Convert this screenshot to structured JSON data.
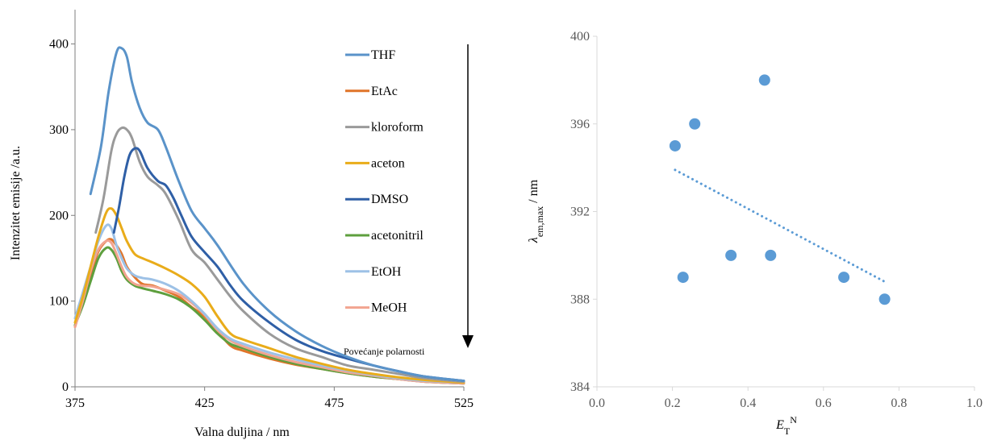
{
  "chart_data": [
    {
      "type": "line",
      "xlabel": "Valna duljina / nm",
      "ylabel": "Intenzitet emisije  /a.u.",
      "xlim": [
        375,
        525
      ],
      "ylim": [
        0,
        440
      ],
      "xticks": [
        "375",
        "425",
        "475",
        "525"
      ],
      "yticks": [
        "0",
        "100",
        "200",
        "300",
        "400"
      ],
      "legend_position": "right-inside",
      "annotation": "Povećanje polarnosti",
      "series": [
        {
          "name": "THF",
          "color": "#5a93c9",
          "x": [
            381,
            385,
            388,
            391,
            393,
            395,
            397,
            400,
            403,
            407,
            410,
            415,
            420,
            425,
            430,
            440,
            450,
            460,
            470,
            480,
            490,
            500,
            510,
            525
          ],
          "y": [
            225,
            280,
            345,
            390,
            395,
            385,
            355,
            325,
            308,
            300,
            280,
            240,
            205,
            185,
            165,
            120,
            88,
            65,
            48,
            35,
            25,
            18,
            12,
            7
          ]
        },
        {
          "name": "EtAc",
          "color": "#e07429",
          "x": [
            375,
            378,
            381,
            384,
            387,
            389,
            391,
            393,
            395,
            398,
            401,
            405,
            410,
            415,
            420,
            425,
            430,
            435,
            440,
            450,
            460,
            470,
            480,
            490,
            500,
            510,
            525
          ],
          "y": [
            70,
            100,
            130,
            158,
            170,
            172,
            165,
            155,
            140,
            128,
            120,
            118,
            112,
            105,
            93,
            82,
            65,
            48,
            42,
            33,
            26,
            21,
            16,
            12,
            9,
            6,
            4
          ]
        },
        {
          "name": "kloroform",
          "color": "#9a9a9a",
          "x": [
            383,
            386,
            389,
            391,
            393,
            395,
            397,
            400,
            403,
            407,
            410,
            415,
            420,
            425,
            430,
            435,
            440,
            450,
            460,
            470,
            480,
            490,
            500,
            510,
            525
          ],
          "y": [
            180,
            220,
            275,
            295,
            302,
            300,
            290,
            262,
            245,
            235,
            225,
            195,
            160,
            145,
            125,
            105,
            88,
            62,
            45,
            35,
            25,
            20,
            15,
            10,
            6
          ]
        },
        {
          "name": "aceton",
          "color": "#e9ac1a",
          "x": [
            375,
            378,
            381,
            384,
            387,
            389,
            391,
            393,
            395,
            398,
            401,
            405,
            410,
            415,
            420,
            425,
            430,
            435,
            440,
            450,
            460,
            470,
            480,
            490,
            500,
            510,
            525
          ],
          "y": [
            75,
            105,
            140,
            175,
            203,
            208,
            200,
            185,
            170,
            155,
            150,
            145,
            138,
            130,
            120,
            105,
            82,
            62,
            55,
            45,
            35,
            27,
            20,
            15,
            11,
            8,
            5
          ]
        },
        {
          "name": "DMSO",
          "color": "#2f5fa6",
          "x": [
            390,
            392,
            394,
            396,
            398,
            400,
            403,
            407,
            410,
            413,
            416,
            420,
            425,
            430,
            435,
            440,
            450,
            460,
            470,
            480,
            490,
            500,
            510,
            525
          ],
          "y": [
            180,
            210,
            245,
            270,
            278,
            275,
            255,
            240,
            235,
            220,
            200,
            175,
            157,
            140,
            118,
            100,
            75,
            55,
            42,
            33,
            25,
            18,
            12,
            7
          ]
        },
        {
          "name": "acetonitril",
          "color": "#5e9f3e",
          "x": [
            375,
            378,
            381,
            384,
            387,
            389,
            391,
            393,
            395,
            398,
            401,
            405,
            410,
            415,
            420,
            425,
            430,
            435,
            440,
            450,
            460,
            470,
            480,
            490,
            500,
            510,
            525
          ],
          "y": [
            72,
            95,
            123,
            150,
            162,
            160,
            150,
            135,
            125,
            118,
            115,
            112,
            108,
            102,
            92,
            78,
            62,
            50,
            45,
            35,
            27,
            21,
            16,
            12,
            9,
            6,
            4
          ]
        },
        {
          "name": "EtOH",
          "color": "#9dc1e6",
          "x": [
            375,
            378,
            381,
            384,
            387,
            389,
            391,
            393,
            395,
            398,
            401,
            405,
            410,
            415,
            420,
            425,
            430,
            435,
            440,
            450,
            460,
            470,
            480,
            490,
            500,
            510,
            525
          ],
          "y": [
            80,
            110,
            140,
            170,
            188,
            185,
            165,
            150,
            138,
            130,
            127,
            125,
            120,
            112,
            100,
            85,
            68,
            56,
            50,
            40,
            32,
            25,
            19,
            14,
            10,
            7,
            5
          ]
        },
        {
          "name": "MeOH",
          "color": "#f2a490",
          "x": [
            375,
            378,
            381,
            384,
            387,
            389,
            391,
            393,
            395,
            398,
            401,
            405,
            410,
            415,
            420,
            425,
            430,
            435,
            440,
            450,
            460,
            470,
            480,
            490,
            500,
            510,
            525
          ],
          "y": [
            70,
            100,
            135,
            160,
            170,
            168,
            155,
            140,
            128,
            120,
            118,
            117,
            113,
            108,
            98,
            84,
            66,
            54,
            47,
            37,
            29,
            23,
            17,
            13,
            9,
            6,
            4
          ]
        }
      ]
    },
    {
      "type": "scatter",
      "xlabel": "E_T^N",
      "xlabel_main": "E",
      "xlabel_sub": "T",
      "xlabel_sup": "N",
      "ylabel": "λem,max / nm",
      "ylabel_main": "λ",
      "ylabel_sub": "em,max",
      "ylabel_rest": " / nm",
      "xlim": [
        0.0,
        1.0
      ],
      "ylim": [
        384,
        400
      ],
      "xticks": [
        "0.0",
        "0.2",
        "0.4",
        "0.6",
        "0.8",
        "1.0"
      ],
      "yticks": [
        "384",
        "388",
        "392",
        "396",
        "400"
      ],
      "color": "#5b9bd5",
      "points": [
        {
          "x": 0.207,
          "y": 395
        },
        {
          "x": 0.228,
          "y": 389
        },
        {
          "x": 0.259,
          "y": 396
        },
        {
          "x": 0.355,
          "y": 390
        },
        {
          "x": 0.444,
          "y": 398
        },
        {
          "x": 0.46,
          "y": 390
        },
        {
          "x": 0.654,
          "y": 389
        },
        {
          "x": 0.762,
          "y": 388
        }
      ],
      "trendline": {
        "style": "dotted",
        "x": [
          0.207,
          0.762
        ],
        "y": [
          393.9,
          388.8
        ]
      }
    }
  ]
}
